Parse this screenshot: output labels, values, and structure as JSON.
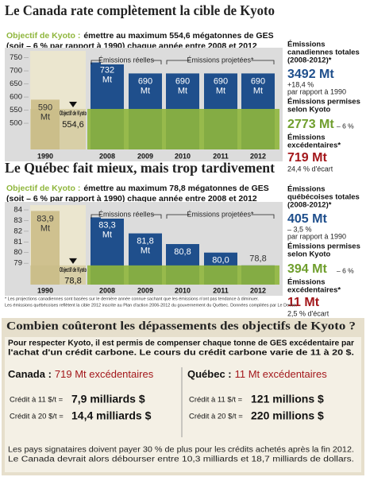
{
  "chart_data": [
    {
      "type": "bar",
      "title": "Le Canada rate complètement la cible de Kyoto",
      "subtitle_lead": "Objectif de Kyoto :",
      "subtitle": [
        "émettre au maximum 554,6 mégatonnes de GES",
        "(soit – 6 % par rapport à 1990) chaque année entre 2008 et 2012"
      ],
      "categories": [
        "1990",
        "2008",
        "2009",
        "2010",
        "2011",
        "2012"
      ],
      "values": [
        590,
        732,
        690,
        690,
        690,
        690
      ],
      "value_labels": [
        "590 Mt",
        "732 Mt",
        "690 Mt",
        "690 Mt",
        "690 Mt",
        "690 Mt"
      ],
      "bar_colors": [
        "#cfc18f",
        "#1f4f8c",
        "#1f4f8c",
        "#1f4f8c",
        "#1f4f8c",
        "#1f4f8c"
      ],
      "target": {
        "label": "Objectif de Kyoto",
        "value": 554.6,
        "value_label": "554,6",
        "color": "#8fb63c"
      },
      "annotations": [
        "Émissions réelles",
        "Émissions projetées*"
      ],
      "ylim": [
        400,
        770
      ],
      "yticks": [
        500,
        550,
        600,
        650,
        700,
        750
      ],
      "grid": false,
      "summary": {
        "total_label": [
          "Émissions",
          "canadiennes totales",
          "(2008-2012)*"
        ],
        "total": "3492 Mt",
        "total_change": "+18,4 %",
        "total_change_ref": "par rapport à 1990",
        "allowed_label": [
          "Émissions permises",
          "selon Kyoto"
        ],
        "allowed": "2773 Mt",
        "allowed_change": "– 6 %",
        "excess_label": [
          "Émissions",
          "excédentaires*"
        ],
        "excess": "719 Mt",
        "excess_gap": "24,4 % d'écart"
      }
    },
    {
      "type": "bar",
      "title": "Le Québec fait mieux, mais trop tardivement",
      "subtitle_lead": "Objectif de Kyoto :",
      "subtitle": [
        "émettre au maximum 78,8 mégatonnes de GES",
        "(soit – 6 % par rapport à 1990) chaque année entre 2008 et 2012"
      ],
      "categories": [
        "1990",
        "2008",
        "2009",
        "2010",
        "2011",
        "2012"
      ],
      "values": [
        83.9,
        83.3,
        81.8,
        80.8,
        80.0,
        78.8
      ],
      "value_labels": [
        "83,9 Mt",
        "83,3 Mt",
        "81,8 Mt",
        "80,8",
        "80,0",
        "78,8"
      ],
      "bar_colors": [
        "#cfc18f",
        "#1f4f8c",
        "#1f4f8c",
        "#1f4f8c",
        "#1f4f8c",
        "#1f4f8c"
      ],
      "target": {
        "label": "Objectif de Kyoto",
        "value": 78.8,
        "value_label": "78,8",
        "color": "#8fb63c"
      },
      "annotations": [
        "Émissions réelles",
        "Émissions projetées*"
      ],
      "ylim": [
        77,
        84.3
      ],
      "yticks": [
        79,
        80,
        81,
        82,
        83,
        84
      ],
      "grid": false,
      "summary": {
        "total_label": [
          "Émissions",
          "québécoises totales",
          "(2008-2012)*"
        ],
        "total": "405 Mt",
        "total_change": "– 3,5 %",
        "total_change_ref": "par rapport à 1990",
        "allowed_label": [
          "Émissions permises",
          "selon Kyoto"
        ],
        "allowed": "394 Mt",
        "allowed_change": "– 6 %",
        "excess_label": [
          "Émissions",
          "excédentaires*"
        ],
        "excess": "11 Mt",
        "excess_gap": "2,5 % d'écart"
      }
    }
  ],
  "notes": [
    "* Les projections canadiennes sont basées sur le dernière année connue sachant que les émissions n'ont pas tendance à diminuer.",
    "Les émissions québécoises reflètent la cible 2012 inscrite au Plan d'action 2006-2012 du gouvernement du Québec. Données compilées par Le Devoir."
  ],
  "costs": {
    "title": "Combien coûteront les dépassements des objectifs de Kyoto ?",
    "intro": [
      "Pour respecter Kyoto, il est permis de compenser chaque tonne de GES excédentaire par",
      "l'achat d'un crédit carbone. Le cours du crédit carbone varie de 11 à 20 $."
    ],
    "columns": [
      {
        "name": "Canada :",
        "excess": "719 Mt excédentaires",
        "rows": [
          [
            "Crédit à 11 $/t =",
            "7,9 milliards $"
          ],
          [
            "Crédit à 20 $/t =",
            "14,4 milliards $"
          ]
        ]
      },
      {
        "name": "Québec :",
        "excess": "11 Mt excédentaires",
        "rows": [
          [
            "Crédit à 11 $/t =",
            "121 millions $"
          ],
          [
            "Crédit à 20 $/t =",
            "220 millions $"
          ]
        ]
      }
    ],
    "footer": [
      "Les pays signataires doivent payer 30 % de plus pour les crédits achetés après la fin 2012.",
      "Le Canada devrait alors débourser entre 10,3 milliards et 18,7 milliards de dollars."
    ]
  }
}
